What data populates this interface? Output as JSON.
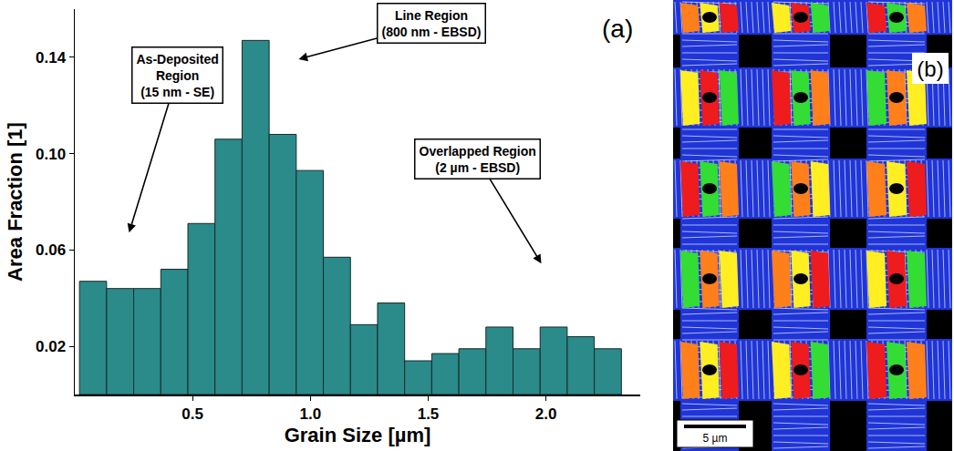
{
  "chart_data": {
    "type": "histogram",
    "label": "(a)",
    "x_label": "Grain Size [µm]",
    "y_label": "Area Fraction [1]",
    "bins": [
      0.02,
      0.135,
      0.25,
      0.365,
      0.48,
      0.595,
      0.71,
      0.825,
      0.94,
      1.055,
      1.17,
      1.285,
      1.4,
      1.515,
      1.63,
      1.745,
      1.86,
      1.975,
      2.09,
      2.205,
      2.32
    ],
    "values": [
      0.047,
      0.044,
      0.044,
      0.052,
      0.071,
      0.106,
      0.147,
      0.108,
      0.093,
      0.057,
      0.029,
      0.038,
      0.014,
      0.017,
      0.019,
      0.028,
      0.019,
      0.028,
      0.024,
      0.019
    ],
    "color": "#2b8a8a",
    "xlim": [
      0,
      2.4
    ],
    "xticks": [
      0.5,
      {
        "value": 1.0,
        "label": "1.0"
      },
      1.5,
      {
        "value": 2.0,
        "label": "2.0"
      }
    ],
    "ylim": [
      0,
      0.16
    ],
    "yticks": [
      0.02,
      0.06,
      {
        "value": 0.1,
        "label": "0.10"
      },
      0.14
    ],
    "grid": false,
    "annotations": [
      {
        "text": [
          "As-Deposited",
          "Region",
          "(15 nm - SE)"
        ]
      },
      {
        "text": [
          "Line Region",
          "(800 nm - EBSD)"
        ]
      },
      {
        "text": [
          "Overlapped Region",
          "(2 µm - EBSD)"
        ]
      }
    ]
  },
  "image_panel": {
    "label": "(b)",
    "scale_bar": "5 µm"
  }
}
